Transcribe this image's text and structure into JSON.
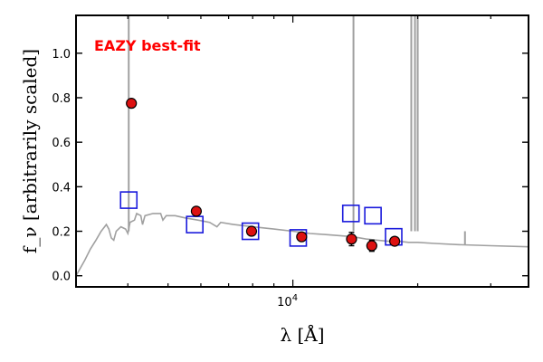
{
  "chart_data": {
    "type": "scatter",
    "annotation": "EAZY best-fit",
    "xlabel": "λ [Å]",
    "ylabel": "f_ν [arbitrarily scaled]",
    "x_scale": "log",
    "xlim": [
      3000,
      37000
    ],
    "ylim": [
      -0.05,
      1.17
    ],
    "x_tick_labels": [
      {
        "value": 10000,
        "label": "10^4"
      }
    ],
    "y_ticks": [
      0.0,
      0.2,
      0.4,
      0.6,
      0.8,
      1.0
    ],
    "y_tick_labels": [
      "0.0",
      "0.2",
      "0.4",
      "0.6",
      "0.8",
      "1.0"
    ],
    "colors": {
      "template": "#a0a0a0",
      "observed_fill": "#dd1111",
      "model_edge": "#1a1adc",
      "annotation": "#ff0000"
    },
    "series": [
      {
        "kind": "template_spectrum",
        "points": [
          [
            3000,
            0.0
          ],
          [
            3150,
            0.07
          ],
          [
            3250,
            0.12
          ],
          [
            3350,
            0.16
          ],
          [
            3450,
            0.2
          ],
          [
            3550,
            0.23
          ],
          [
            3600,
            0.21
          ],
          [
            3650,
            0.17
          ],
          [
            3700,
            0.16
          ],
          [
            3750,
            0.2
          ],
          [
            3850,
            0.22
          ],
          [
            3950,
            0.21
          ],
          [
            4000,
            0.19
          ],
          [
            4050,
            0.24
          ],
          [
            4150,
            0.25
          ],
          [
            4200,
            0.28
          ],
          [
            4300,
            0.27
          ],
          [
            4340,
            0.23
          ],
          [
            4400,
            0.27
          ],
          [
            4600,
            0.28
          ],
          [
            4800,
            0.28
          ],
          [
            4860,
            0.25
          ],
          [
            4950,
            0.27
          ],
          [
            5200,
            0.27
          ],
          [
            5500,
            0.26
          ],
          [
            5900,
            0.25
          ],
          [
            6300,
            0.24
          ],
          [
            6560,
            0.22
          ],
          [
            6700,
            0.24
          ],
          [
            7200,
            0.23
          ],
          [
            8000,
            0.22
          ],
          [
            9000,
            0.21
          ],
          [
            10000,
            0.2
          ],
          [
            11000,
            0.19
          ],
          [
            12000,
            0.185
          ],
          [
            13000,
            0.18
          ],
          [
            14000,
            0.175
          ],
          [
            15000,
            0.165
          ],
          [
            16000,
            0.16
          ],
          [
            17000,
            0.155
          ],
          [
            18000,
            0.155
          ],
          [
            19000,
            0.15
          ],
          [
            20000,
            0.15
          ],
          [
            22000,
            0.145
          ],
          [
            25000,
            0.14
          ],
          [
            30000,
            0.135
          ],
          [
            37000,
            0.13
          ]
        ]
      },
      {
        "kind": "emission_spikes",
        "lines": [
          [
            4020,
            1.18
          ],
          [
            14000,
            1.18
          ],
          [
            19300,
            1.18
          ],
          [
            19700,
            1.18
          ],
          [
            20000,
            1.18
          ],
          [
            26000,
            0.14
          ]
        ]
      },
      {
        "kind": "model_photometry",
        "points": [
          [
            4020,
            0.34
          ],
          [
            5800,
            0.23
          ],
          [
            7900,
            0.2
          ],
          [
            10300,
            0.17
          ],
          [
            13800,
            0.28
          ],
          [
            15600,
            0.27
          ],
          [
            17500,
            0.175
          ]
        ]
      },
      {
        "kind": "observed_photometry",
        "points": [
          {
            "x": 4080,
            "y": 0.775,
            "err": 0.0
          },
          {
            "x": 5850,
            "y": 0.29,
            "err": 0.0
          },
          {
            "x": 7950,
            "y": 0.2,
            "err": 0.0
          },
          {
            "x": 10500,
            "y": 0.175,
            "err": 0.0
          },
          {
            "x": 13850,
            "y": 0.165,
            "err": 0.03
          },
          {
            "x": 15500,
            "y": 0.135,
            "err": 0.025
          },
          {
            "x": 17600,
            "y": 0.155,
            "err": 0.0
          }
        ]
      }
    ]
  }
}
